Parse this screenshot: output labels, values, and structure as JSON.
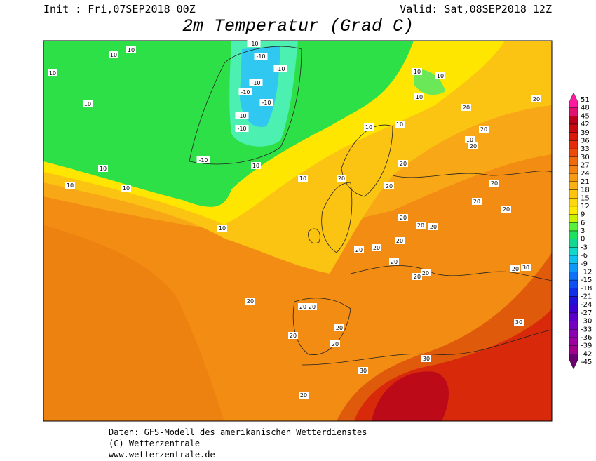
{
  "header": {
    "init": "Init : Fri,07SEP2018 00Z",
    "valid": "Valid: Sat,08SEP2018 12Z",
    "title": "2m Temperatur (Grad C)"
  },
  "colorbar": {
    "levels": [
      51,
      48,
      45,
      42,
      39,
      36,
      33,
      30,
      27,
      24,
      21,
      18,
      15,
      12,
      9,
      6,
      3,
      0,
      -3,
      -6,
      -9,
      -12,
      -15,
      -18,
      -21,
      -24,
      -27,
      -30,
      -33,
      -36,
      -39,
      -42,
      -45
    ],
    "colors": [
      "#ff1aa0",
      "#e0106e",
      "#b8001c",
      "#c80a10",
      "#d81a0a",
      "#e42c08",
      "#ec4a08",
      "#f06a0a",
      "#f48210",
      "#f89a14",
      "#fbb014",
      "#fcc410",
      "#fed80c",
      "#ffe800",
      "#c8f000",
      "#5af03c",
      "#1ee060",
      "#10d890",
      "#10d8c8",
      "#10c0f0",
      "#1098f8",
      "#1070f8",
      "#1050f0",
      "#1030e8",
      "#2010d8",
      "#3c00d0",
      "#5800c8",
      "#7400c0",
      "#8c00b4",
      "#9c00a0",
      "#a0008c",
      "#6a0070"
    ]
  },
  "contour_labels": [
    10,
    10,
    10,
    10,
    10,
    10,
    10,
    10,
    -10,
    -10,
    -10,
    -10,
    -10,
    -10,
    -10,
    -10,
    -10,
    10,
    10,
    10,
    10,
    10,
    10,
    10,
    10,
    20,
    20,
    20,
    20,
    20,
    20,
    20,
    20,
    20,
    20,
    20,
    20,
    20,
    20,
    20,
    20,
    20,
    20,
    20,
    20,
    20,
    20,
    30,
    30,
    30,
    30,
    20,
    20,
    20,
    20,
    20
  ],
  "footer": [
    "Daten: GFS-Modell des amerikanischen Wetterdienstes",
    "(C) Wetterzentrale",
    "www.wetterzentrale.de"
  ]
}
